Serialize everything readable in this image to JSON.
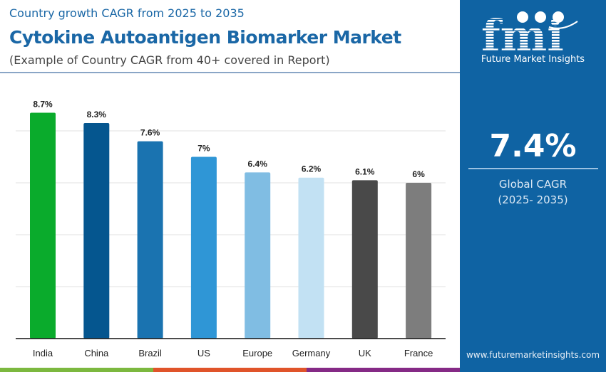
{
  "header": {
    "subtitle_top": "Country growth CAGR from 2025 to 2035",
    "title": "Cytokine Autoantigen Biomarker Market",
    "subtitle": "(Example of Country CAGR from 40+ covered in Report)"
  },
  "panel": {
    "brand_logo": "fmi",
    "brand_name": "Future Market Insights",
    "global_value": "7.4%",
    "global_label": "Global CAGR",
    "global_period": "(2025- 2035)",
    "url": "www.futuremarketinsights.com",
    "background_color": "#0f63a3"
  },
  "strip_colors": [
    "#7cb83f",
    "#e0542a",
    "#852a86"
  ],
  "chart_data": {
    "type": "bar",
    "categories": [
      "India",
      "China",
      "Brazil",
      "US",
      "Europe",
      "Germany",
      "UK",
      "France"
    ],
    "values": [
      8.7,
      8.3,
      7.6,
      7,
      6.4,
      6.2,
      6.1,
      6
    ],
    "data_labels": [
      "8.7%",
      "8.3%",
      "7.6%",
      "7%",
      "6.4%",
      "6.2%",
      "6.1%",
      "6%"
    ],
    "colors": [
      "#0aab2c",
      "#05568f",
      "#1a73b0",
      "#2f96d6",
      "#80bde3",
      "#c2e1f3",
      "#494949",
      "#7d7d7d"
    ],
    "ylim": [
      0,
      10
    ],
    "gridlines": [
      2,
      4,
      6,
      8
    ],
    "grid": true,
    "title": "",
    "xlabel": "",
    "ylabel": ""
  }
}
